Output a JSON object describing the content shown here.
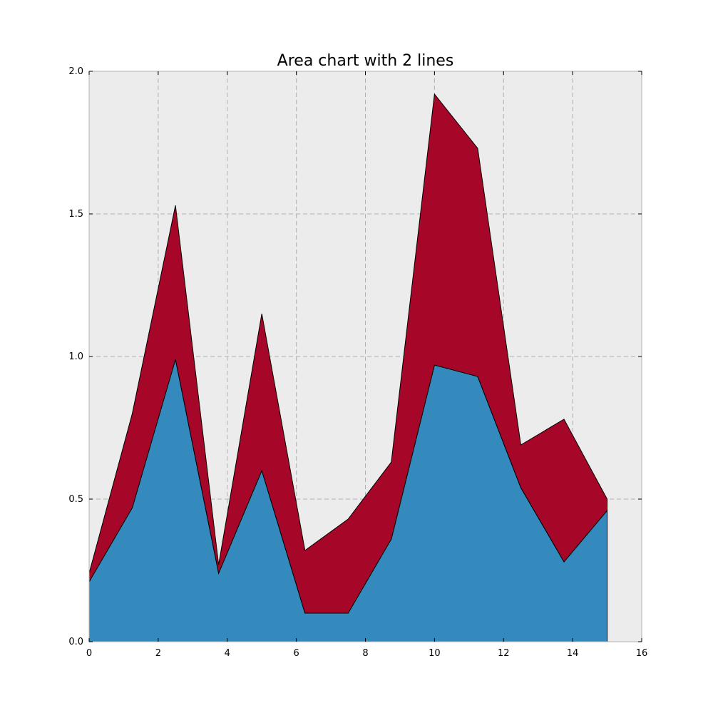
{
  "chart_data": {
    "type": "area",
    "stacked": true,
    "title": "Area chart with 2 lines",
    "xlabel": "",
    "ylabel": "",
    "xlim": [
      0,
      16
    ],
    "ylim": [
      0,
      2
    ],
    "xticks": [
      "0",
      "2",
      "4",
      "6",
      "8",
      "10",
      "12",
      "14",
      "16"
    ],
    "yticks": [
      "0.0",
      "0.5",
      "1.0",
      "1.5",
      "2.0"
    ],
    "grid": true,
    "background_color": "#ececec",
    "x": [
      0,
      1.25,
      2.5,
      3.75,
      5,
      6.25,
      7.5,
      8.75,
      10,
      11.25,
      12.5,
      13.75,
      15
    ],
    "series": [
      {
        "color": "#348abd",
        "values": [
          0.21,
          0.47,
          0.99,
          0.24,
          0.6,
          0.1,
          0.1,
          0.36,
          0.97,
          0.93,
          0.54,
          0.28,
          0.46
        ]
      },
      {
        "color": "#a60628",
        "values": [
          0.03,
          0.33,
          0.54,
          0.03,
          0.55,
          0.22,
          0.33,
          0.27,
          0.95,
          0.8,
          0.15,
          0.5,
          0.04
        ]
      }
    ]
  }
}
